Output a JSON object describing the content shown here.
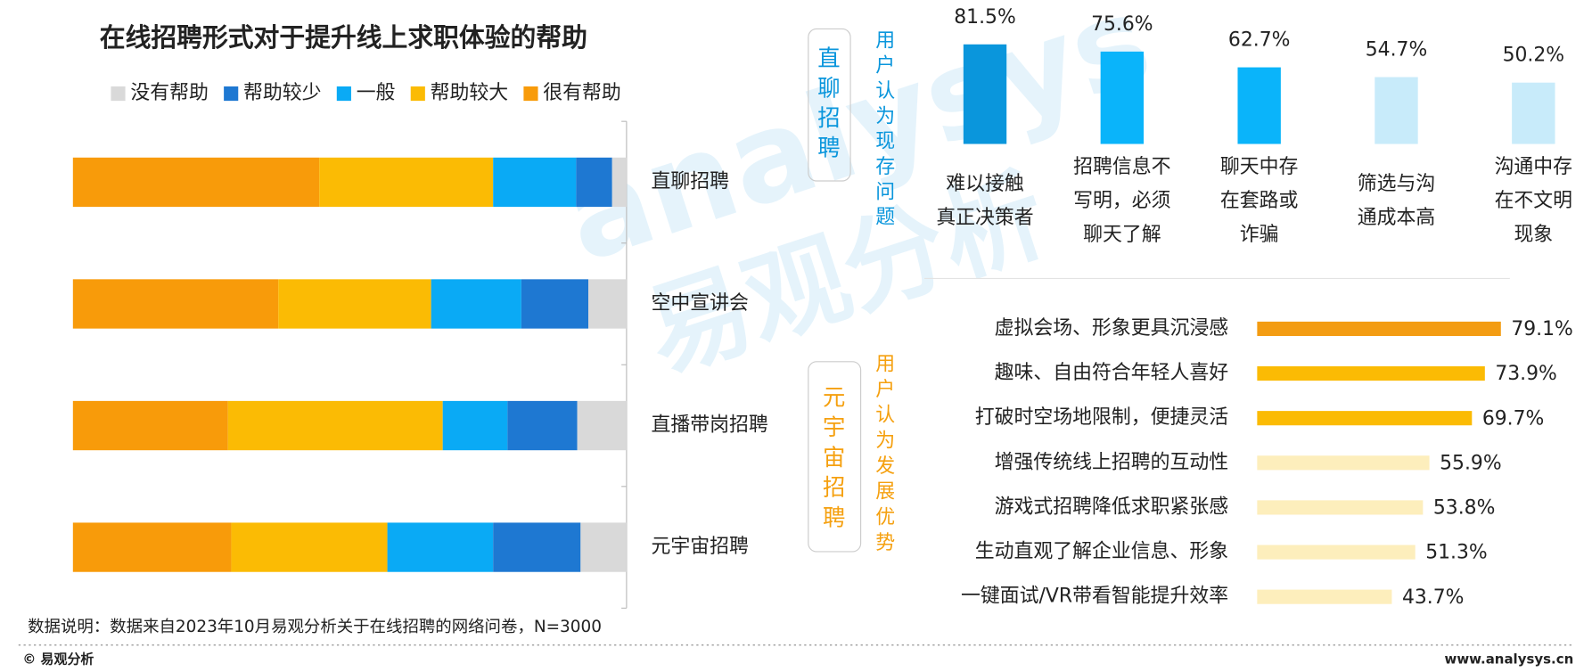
{
  "chart_data": [
    {
      "type": "stacked-hbar",
      "title": "在线招聘形式对于提升线上求职体验的帮助",
      "categories": [
        "直聊招聘",
        "空中宣讲会",
        "直播带岗招聘",
        "元宇宙招聘"
      ],
      "xlim": [
        0,
        100
      ],
      "series": [
        {
          "name": "没有帮助",
          "color": "#d9d9d9",
          "values": [
            2.6,
            6.9,
            8.9,
            8.3
          ]
        },
        {
          "name": "帮助较少",
          "color": "#1e78d2",
          "values": [
            6.5,
            12.1,
            12.6,
            15.8
          ]
        },
        {
          "name": "一般",
          "color": "#0aaaf5",
          "values": [
            15.0,
            16.3,
            11.7,
            19.1
          ]
        },
        {
          "name": "帮助较大",
          "color": "#fbbb04",
          "values": [
            31.4,
            27.6,
            38.8,
            28.2
          ]
        },
        {
          "name": "很有帮助",
          "color": "#f89b0a",
          "values": [
            44.5,
            37.1,
            28.0,
            28.6
          ]
        }
      ]
    },
    {
      "type": "bar",
      "group_label": "直聊招聘",
      "subtitle": "用户认为现存问题",
      "categories": [
        [
          "难以接触",
          "真正决策者"
        ],
        [
          "招聘信息不",
          "写明，必须",
          "聊天了解"
        ],
        [
          "聊天中存",
          "在套路或",
          "诈骗"
        ],
        [
          "筛选与沟",
          "通成本高"
        ],
        [
          "沟通中存",
          "在不文明",
          "现象"
        ]
      ],
      "values": [
        81.5,
        75.6,
        62.7,
        54.7,
        50.2
      ],
      "value_labels": [
        "81.5%",
        "75.6%",
        "62.7%",
        "54.7%",
        "50.2%"
      ],
      "colors": [
        "#0a96dc",
        "#0ab4fa",
        "#0ab4fa",
        "#c8ebfa",
        "#c8ebfa"
      ],
      "ylim": [
        0,
        100
      ],
      "label_color": "#0a96dc"
    },
    {
      "type": "hbar",
      "group_label": "元宇宙招聘",
      "subtitle": "用户认为发展优势",
      "categories": [
        "虚拟会场、形象更具沉浸感",
        "趣味、自由符合年轻人喜好",
        "打破时空场地限制，便捷灵活",
        "增强传统线上招聘的互动性",
        "游戏式招聘降低求职紧张感",
        "生动直观了解企业信息、形象",
        "一键面试/VR带看智能提升效率"
      ],
      "values": [
        79.1,
        73.9,
        69.7,
        55.9,
        53.8,
        51.3,
        43.7
      ],
      "value_labels": [
        "79.1%",
        "73.9%",
        "69.7%",
        "55.9%",
        "53.8%",
        "51.3%",
        "43.7%"
      ],
      "colors": [
        "#f39c12",
        "#fbbb04",
        "#fbbb04",
        "#fdeebc",
        "#fdeebc",
        "#fdeebc",
        "#fdeebc"
      ],
      "xlim": [
        0,
        100
      ],
      "label_color": "#f5a00f"
    }
  ],
  "note": "数据说明：数据来自2023年10月易观分析关于在线招聘的网络问卷，N=3000",
  "copyright": "© 易观分析",
  "website": "www.analysys.cn",
  "watermark": [
    "analysys",
    "易观分析"
  ]
}
